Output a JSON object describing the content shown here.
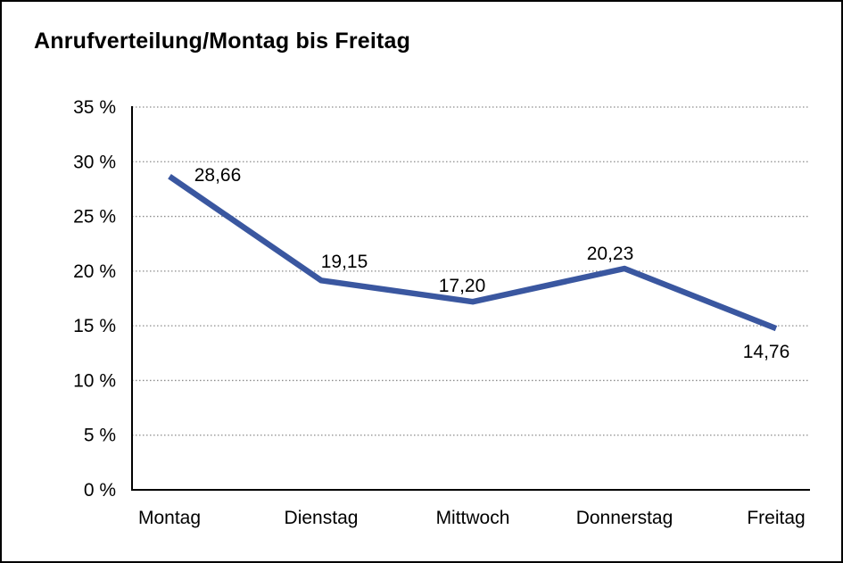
{
  "window": {
    "background": "#ffffff",
    "frame_color": "#000000"
  },
  "chart_data": {
    "type": "line",
    "title": "Anrufverteilung/Montag bis Freitag",
    "categories": [
      "Montag",
      "Dienstag",
      "Mittwoch",
      "Donnerstag",
      "Freitag"
    ],
    "values": [
      28.66,
      19.15,
      17.2,
      20.23,
      14.76
    ],
    "point_labels": [
      "28,66",
      "19,15",
      "17,20",
      "20,23",
      "14,76"
    ],
    "y_ticks": [
      "0 %",
      "5 %",
      "10 %",
      "15 %",
      "20 %",
      "25 %",
      "30 %",
      "35 %"
    ],
    "ylim": [
      0,
      35
    ],
    "y_tick_step": 5,
    "xlabel": "",
    "ylabel": "",
    "grid": "horizontal-dotted",
    "legend": "none",
    "colors": {
      "line": "#3A57A0",
      "axis": "#000000",
      "gridline": "#8c8c8c",
      "text": "#000000"
    }
  }
}
